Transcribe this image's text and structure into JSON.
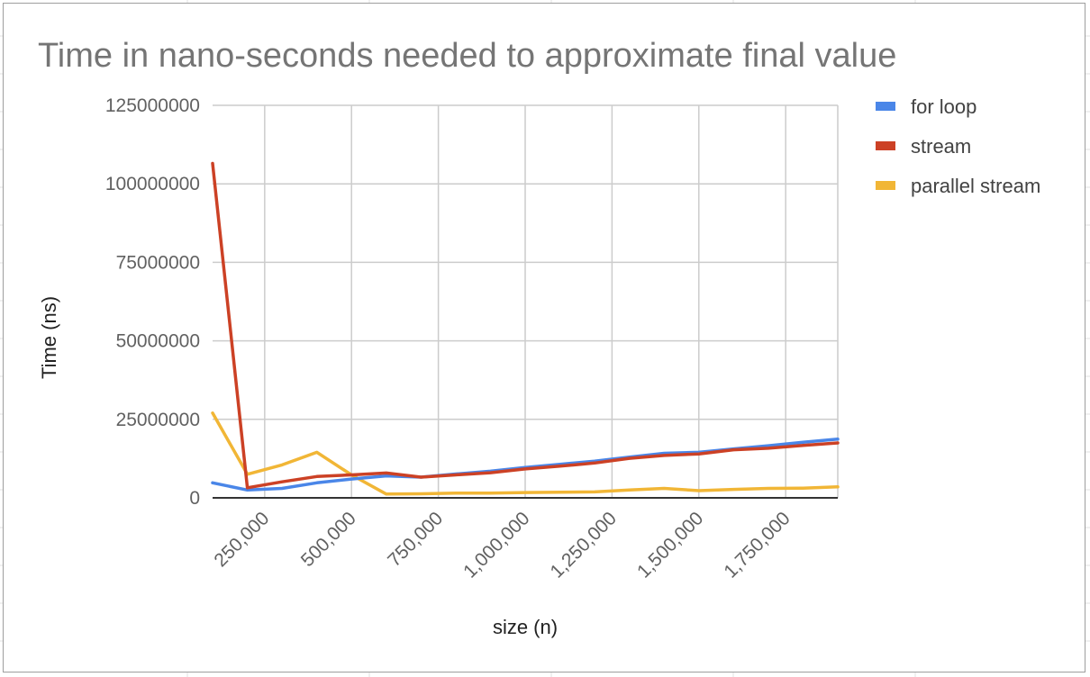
{
  "colors": {
    "for_loop": "#4a86e8",
    "stream": "#cc4125",
    "parallel_stream": "#f1b636",
    "grid": "#cccccc",
    "axis": "#333333",
    "sheet_grid": "#e0e0e0",
    "frame": "#9e9e9e"
  },
  "chart_data": {
    "type": "line",
    "title": "Time in nano-seconds needed to approximate final value",
    "xlabel": "size (n)",
    "ylabel": "Time (ns)",
    "xlim": [
      100000,
      1900000
    ],
    "ylim": [
      0,
      125000000
    ],
    "x_ticks": [
      250000,
      500000,
      750000,
      1000000,
      1250000,
      1500000,
      1750000
    ],
    "x_tick_labels": [
      "250,000",
      "500,000",
      "750,000",
      "1,000,000",
      "1,250,000",
      "1,500,000",
      "1,750,000"
    ],
    "y_ticks": [
      0,
      25000000,
      50000000,
      75000000,
      100000000,
      125000000
    ],
    "y_tick_labels": [
      "0",
      "25000000",
      "50000000",
      "75000000",
      "100000000",
      "125000000"
    ],
    "grid": true,
    "legend_position": "right",
    "x": [
      100000,
      200000,
      300000,
      400000,
      500000,
      600000,
      700000,
      800000,
      900000,
      1000000,
      1100000,
      1200000,
      1300000,
      1400000,
      1500000,
      1600000,
      1700000,
      1800000,
      1900000
    ],
    "series": [
      {
        "name": "for loop",
        "color_key": "for_loop",
        "values": [
          4800000,
          2500000,
          3000000,
          4800000,
          6000000,
          7000000,
          6600000,
          7600000,
          8500000,
          9700000,
          10700000,
          11700000,
          13000000,
          14200000,
          14500000,
          15600000,
          16600000,
          17700000,
          18700000
        ]
      },
      {
        "name": "stream",
        "color_key": "stream",
        "values": [
          106500000,
          3200000,
          5100000,
          6800000,
          7300000,
          7900000,
          6600000,
          7300000,
          8000000,
          9200000,
          10100000,
          11100000,
          12600000,
          13500000,
          14000000,
          15300000,
          15800000,
          16700000,
          17500000
        ]
      },
      {
        "name": "parallel stream",
        "color_key": "parallel_stream",
        "values": [
          27000000,
          7500000,
          10500000,
          14500000,
          7300000,
          1200000,
          1300000,
          1500000,
          1500000,
          1700000,
          1800000,
          1900000,
          2500000,
          3000000,
          2300000,
          2700000,
          3000000,
          3100000,
          3500000
        ]
      }
    ]
  }
}
